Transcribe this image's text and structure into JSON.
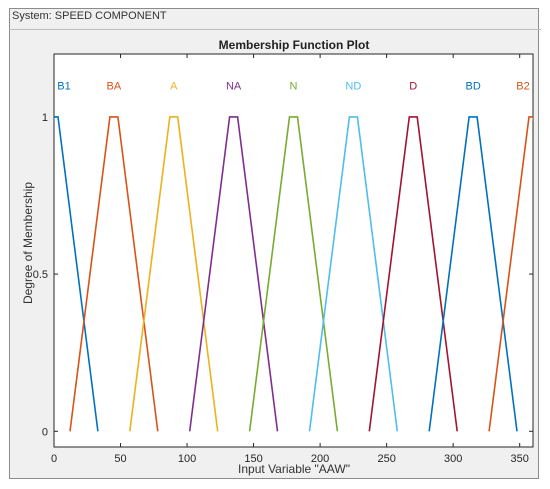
{
  "system_label": "System: SPEED COMPONENT",
  "chart_data": {
    "type": "line",
    "title": "Membership Function Plot",
    "xlabel": "Input Variable \"AAW\"",
    "ylabel": "Degree of Membership",
    "xlim": [
      0,
      360
    ],
    "ylim": [
      -0.05,
      1.2
    ],
    "xticks": [
      0,
      50,
      100,
      150,
      200,
      250,
      300,
      350
    ],
    "yticks": [
      0,
      0.5,
      1
    ],
    "ytick_labels": [
      "0",
      "0.5",
      "1"
    ],
    "grid": false,
    "series": [
      {
        "name": "B1",
        "color": "#0072BD",
        "x": [
          -35,
          0,
          3,
          33
        ],
        "y": [
          0,
          1,
          1,
          0
        ]
      },
      {
        "name": "BA",
        "color": "#D95319",
        "x": [
          12,
          42,
          48,
          78
        ],
        "y": [
          0,
          1,
          1,
          0
        ]
      },
      {
        "name": "A",
        "color": "#EDB120",
        "x": [
          57,
          87,
          93,
          123
        ],
        "y": [
          0,
          1,
          1,
          0
        ]
      },
      {
        "name": "NA",
        "color": "#7E2F8E",
        "x": [
          102,
          132,
          138,
          168
        ],
        "y": [
          0,
          1,
          1,
          0
        ]
      },
      {
        "name": "N",
        "color": "#77AC30",
        "x": [
          147,
          177,
          183,
          213
        ],
        "y": [
          0,
          1,
          1,
          0
        ]
      },
      {
        "name": "ND",
        "color": "#4DBEEE",
        "x": [
          192,
          222,
          228,
          258
        ],
        "y": [
          0,
          1,
          1,
          0
        ]
      },
      {
        "name": "D",
        "color": "#A2142F",
        "x": [
          237,
          267,
          273,
          303
        ],
        "y": [
          0,
          1,
          1,
          0
        ]
      },
      {
        "name": "BD",
        "color": "#0072BD",
        "x": [
          282,
          312,
          318,
          348
        ],
        "y": [
          0,
          1,
          1,
          0
        ]
      },
      {
        "name": "B2",
        "color": "#D95319",
        "x": [
          327,
          357,
          360,
          395
        ],
        "y": [
          0,
          1,
          1,
          0
        ]
      }
    ]
  }
}
